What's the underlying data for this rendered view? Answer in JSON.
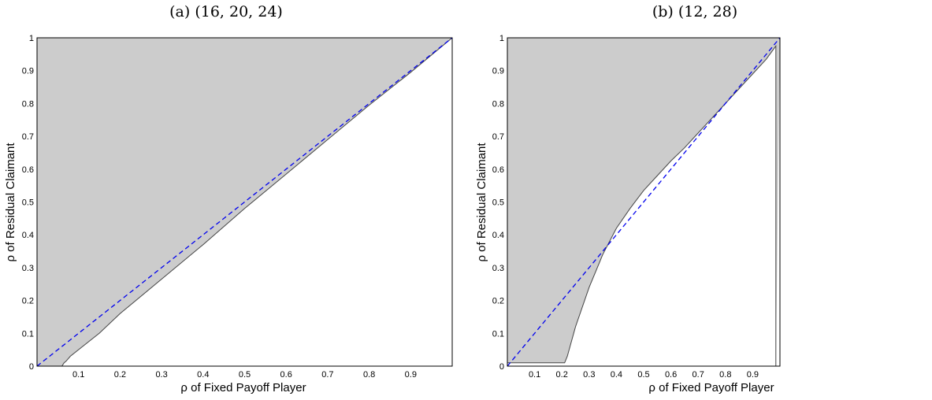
{
  "chart_data": [
    {
      "type": "area",
      "title": "(a) (16, 20, 24)",
      "xlabel": "ρ of Fixed Payoff Player",
      "ylabel": "ρ of Residual Claimant",
      "xlim": [
        0,
        1
      ],
      "ylim": [
        0,
        1
      ],
      "x_ticks": [
        "0.1",
        "0.2",
        "0.3",
        "0.4",
        "0.5",
        "0.6",
        "0.7",
        "0.8",
        "0.9"
      ],
      "y_ticks": [
        "0",
        "0.1",
        "0.2",
        "0.3",
        "0.4",
        "0.5",
        "0.6",
        "0.7",
        "0.8",
        "0.9",
        "1"
      ],
      "grid": false,
      "fill_color": "#cccccc",
      "boundary_color": "#444444",
      "diagonal_color": "#0000ee",
      "series": [
        {
          "kind": "shaded-region-boundary",
          "x": [
            0.0,
            0.06,
            0.065,
            0.07,
            0.08,
            0.1,
            0.15,
            0.2,
            0.3,
            0.4,
            0.5,
            0.6,
            0.7,
            0.8,
            0.9,
            1.0
          ],
          "y": [
            0.0,
            0.0,
            0.01,
            0.015,
            0.03,
            0.05,
            0.1,
            0.16,
            0.265,
            0.37,
            0.48,
            0.585,
            0.69,
            0.795,
            0.895,
            1.0
          ]
        },
        {
          "kind": "diagonal-dashed",
          "x": [
            0,
            1
          ],
          "y": [
            0,
            1
          ]
        }
      ]
    },
    {
      "type": "area",
      "title": "(b) (12, 28)",
      "xlabel": "ρ of Fixed Payoff Player",
      "ylabel": "ρ of Residual Claimant",
      "xlim": [
        0,
        1
      ],
      "ylim": [
        0,
        1
      ],
      "x_ticks": [
        "0.1",
        "0.2",
        "0.3",
        "0.4",
        "0.5",
        "0.6",
        "0.7",
        "0.8",
        "0.9"
      ],
      "y_ticks": [
        "0",
        "0.1",
        "0.2",
        "0.3",
        "0.4",
        "0.5",
        "0.6",
        "0.7",
        "0.8",
        "0.9",
        "1"
      ],
      "grid": false,
      "fill_color": "#cccccc",
      "boundary_color": "#444444",
      "diagonal_color": "#0000ee",
      "series": [
        {
          "kind": "shaded-region-boundary",
          "x": [
            0.0,
            0.0,
            0.21,
            0.22,
            0.25,
            0.3,
            0.35,
            0.4,
            0.45,
            0.5,
            0.55,
            0.6,
            0.65,
            0.7,
            0.75,
            0.8,
            0.85,
            0.9,
            0.95,
            0.985,
            0.985
          ],
          "y": [
            0.0,
            0.01,
            0.01,
            0.03,
            0.12,
            0.24,
            0.34,
            0.42,
            0.48,
            0.535,
            0.58,
            0.625,
            0.665,
            0.71,
            0.755,
            0.8,
            0.845,
            0.89,
            0.935,
            0.975,
            0.0
          ]
        },
        {
          "kind": "diagonal-dashed",
          "x": [
            0,
            1
          ],
          "y": [
            0,
            1
          ]
        }
      ]
    }
  ]
}
